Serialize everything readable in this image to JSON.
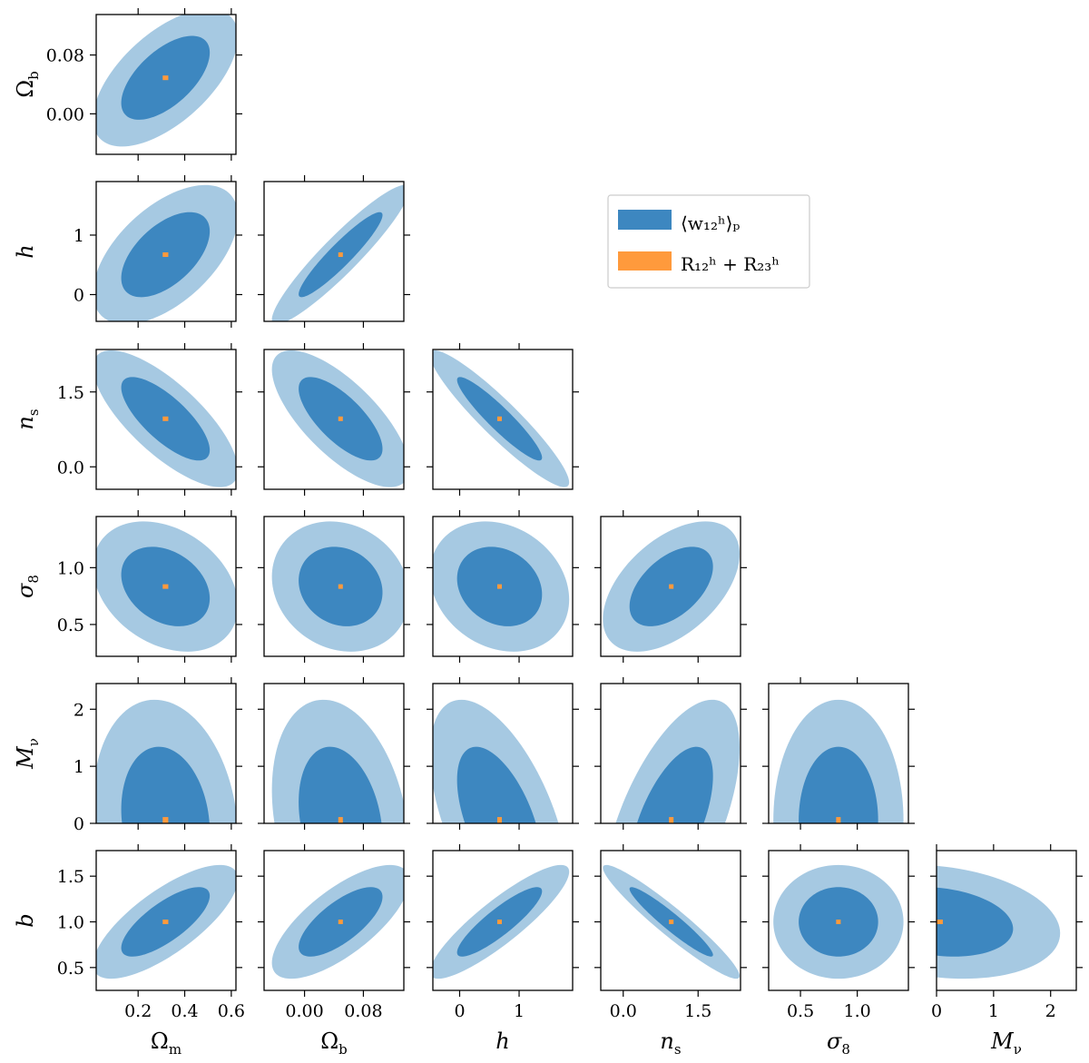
{
  "chart_data": {
    "type": "corner-contour",
    "params": [
      "Ωm",
      "Ωb",
      "h",
      "ns",
      "σ8",
      "Mν",
      "b"
    ],
    "axis_labels": {
      "Ωm": {
        "base": "Ω",
        "sub": "m",
        "italic": false
      },
      "Ωb": {
        "base": "Ω",
        "sub": "b",
        "italic": false
      },
      "h": {
        "base": "h",
        "sub": "",
        "italic": true
      },
      "ns": {
        "base": "n",
        "sub": "s",
        "italic": true
      },
      "σ8": {
        "base": "σ",
        "sub": "8",
        "italic": true
      },
      "Mν": {
        "base": "M",
        "sub": "ν",
        "italic": true
      },
      "b": {
        "base": "b",
        "sub": "",
        "italic": true
      }
    },
    "fiducial": {
      "Ωm": 0.3175,
      "Ωb": 0.049,
      "h": 0.6711,
      "ns": 0.9624,
      "σ8": 0.834,
      "Mν": 0.05,
      "b": 1.0
    },
    "ranges": {
      "Ωm": [
        0.02,
        0.62
      ],
      "Ωb": [
        -0.055,
        0.135
      ],
      "h": [
        -0.45,
        1.9
      ],
      "ns": [
        -0.45,
        2.35
      ],
      "σ8": [
        0.22,
        1.45
      ],
      "Mν": [
        0,
        2.45
      ],
      "b": [
        0.25,
        1.78
      ]
    },
    "ticks": {
      "Ωm": {
        "values": [
          0.2,
          0.4,
          0.6
        ],
        "labels": [
          "0.2",
          "0.4",
          "0.6"
        ]
      },
      "Ωb": {
        "values": [
          0.0,
          0.08
        ],
        "labels": [
          "0.00",
          "0.08"
        ]
      },
      "h": {
        "values": [
          0,
          1
        ],
        "labels": [
          "0",
          "1"
        ]
      },
      "ns": {
        "values": [
          0.0,
          1.5
        ],
        "labels": [
          "0.0",
          "1.5"
        ]
      },
      "σ8": {
        "values": [
          0.5,
          1.0
        ],
        "labels": [
          "0.5",
          "1.0"
        ]
      },
      "Mν": {
        "values": [
          0,
          1,
          2
        ],
        "labels": [
          "0",
          "1",
          "2"
        ]
      },
      "b": {
        "values": [
          0.5,
          1.0,
          1.5
        ],
        "labels": [
          "0.5",
          "1.0",
          "1.5"
        ]
      }
    },
    "panels": [
      {
        "x": "Ωm",
        "y": "Ωb",
        "sx": 0.125,
        "sy": 0.0375,
        "rho": 0.6
      },
      {
        "x": "Ωm",
        "y": "h",
        "sx": 0.125,
        "sy": 0.47,
        "rho": 0.55
      },
      {
        "x": "Ωb",
        "y": "h",
        "sx": 0.0375,
        "sy": 0.47,
        "rho": 0.93
      },
      {
        "x": "Ωm",
        "y": "ns",
        "sx": 0.125,
        "sy": 0.55,
        "rho": -0.75
      },
      {
        "x": "Ωb",
        "y": "ns",
        "sx": 0.0375,
        "sy": 0.55,
        "rho": -0.72
      },
      {
        "x": "h",
        "y": "ns",
        "sx": 0.47,
        "sy": 0.55,
        "rho": -0.93
      },
      {
        "x": "Ωm",
        "y": "σ8",
        "sx": 0.125,
        "sy": 0.23,
        "rho": -0.3
      },
      {
        "x": "Ωb",
        "y": "σ8",
        "sx": 0.0375,
        "sy": 0.23,
        "rho": -0.15
      },
      {
        "x": "h",
        "y": "σ8",
        "sx": 0.47,
        "sy": 0.23,
        "rho": -0.2
      },
      {
        "x": "ns",
        "y": "σ8",
        "sx": 0.55,
        "sy": 0.23,
        "rho": 0.5
      },
      {
        "x": "Ωm",
        "y": "Mν",
        "sx": 0.125,
        "sy": 0.85,
        "rho": -0.15
      },
      {
        "x": "Ωb",
        "y": "Mν",
        "sx": 0.0375,
        "sy": 0.85,
        "rho": -0.25
      },
      {
        "x": "h",
        "y": "Mν",
        "sx": 0.47,
        "sy": 0.85,
        "rho": -0.55
      },
      {
        "x": "ns",
        "y": "Mν",
        "sx": 0.55,
        "sy": 0.85,
        "rho": 0.6
      },
      {
        "x": "σ8",
        "y": "Mν",
        "sx": 0.23,
        "sy": 0.85,
        "rho": 0.0
      },
      {
        "x": "Ωm",
        "y": "b",
        "sx": 0.125,
        "sy": 0.25,
        "rho": 0.75
      },
      {
        "x": "Ωb",
        "y": "b",
        "sx": 0.0375,
        "sy": 0.25,
        "rho": 0.72
      },
      {
        "x": "h",
        "y": "b",
        "sx": 0.47,
        "sy": 0.25,
        "rho": 0.88
      },
      {
        "x": "ns",
        "y": "b",
        "sx": 0.55,
        "sy": 0.25,
        "rho": -0.95
      },
      {
        "x": "σ8",
        "y": "b",
        "sx": 0.23,
        "sy": 0.25,
        "rho": 0.0
      },
      {
        "x": "Mν",
        "y": "b",
        "sx": 0.85,
        "sy": 0.25,
        "rho": -0.2
      }
    ],
    "contour_levels": {
      "inner": 1.52,
      "outer": 2.49
    },
    "orange_halfwidth": {
      "Ωm": 0.012,
      "Ωb": 0.003,
      "h": 0.03,
      "ns": 0.035,
      "σ8": 0.015,
      "Mν": 0.06,
      "b": 0.02
    },
    "legend": {
      "placement": "upper-right of triangle",
      "entries": [
        {
          "name": "series-wp",
          "label": "⟨w₁₂ʰ⟩ₚ",
          "color": "#3d87c0"
        },
        {
          "name": "series-R",
          "label": "R₁₂ʰ + R₂₃ʰ",
          "color": "#ff9a3c"
        }
      ]
    },
    "colors": {
      "outer": "#a6c9e2",
      "inner": "#3d87c0",
      "orange": "#ff9a3c"
    }
  }
}
